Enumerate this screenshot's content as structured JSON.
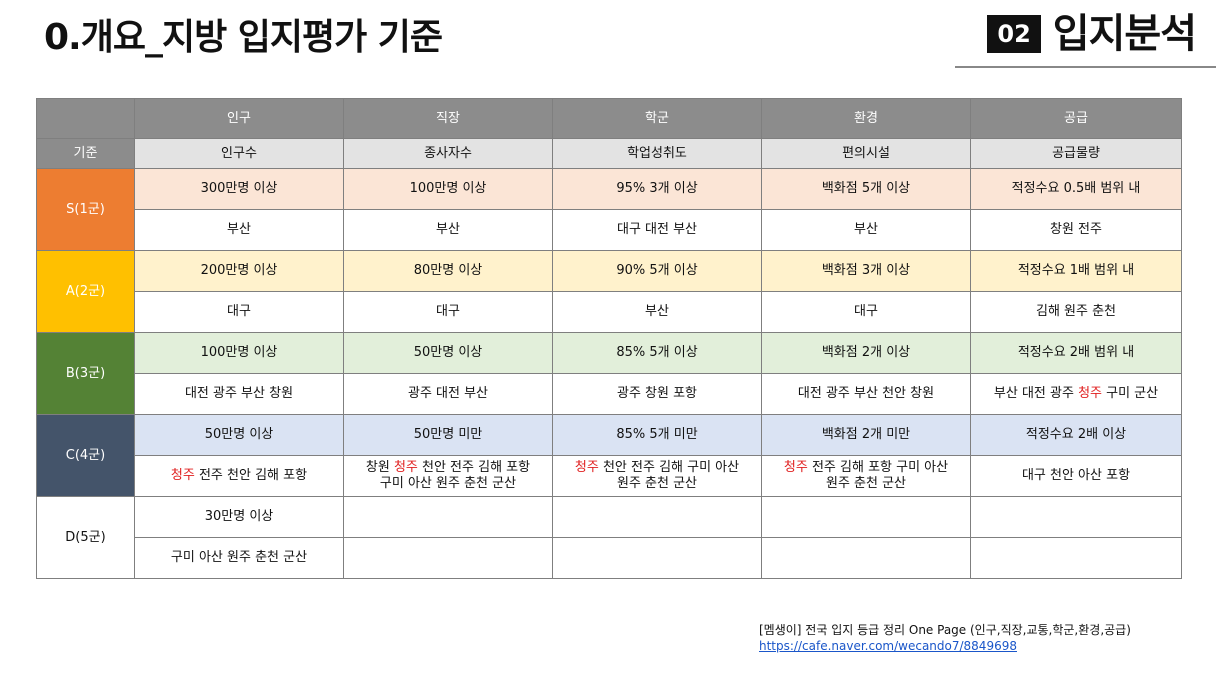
{
  "title": "0.개요_지방 입지평가 기준",
  "section": {
    "number": "02",
    "name": "입지분석"
  },
  "table": {
    "categories": [
      "인구",
      "직장",
      "학군",
      "환경",
      "공급"
    ],
    "criteria_label": "기준",
    "criteria": [
      "인구수",
      "종사자수",
      "학업성취도",
      "편의시설",
      "공급물량"
    ],
    "grades": [
      {
        "label": "S(1군)",
        "color": "#ed7d31",
        "thresholds": [
          "300만명 이상",
          "100만명 이상",
          "95% 3개 이상",
          "백화점 5개 이상",
          "적정수요 0.5배 범위 내"
        ],
        "places": [
          [
            {
              "t": "부산"
            }
          ],
          [
            {
              "t": "부산"
            }
          ],
          [
            {
              "t": "대구 대전 부산"
            }
          ],
          [
            {
              "t": "부산"
            }
          ],
          [
            {
              "t": "창원 전주"
            }
          ]
        ]
      },
      {
        "label": "A(2군)",
        "color": "#ffc000",
        "thresholds": [
          "200만명 이상",
          "80만명 이상",
          "90% 5개 이상",
          "백화점 3개 이상",
          "적정수요 1배 범위 내"
        ],
        "places": [
          [
            {
              "t": "대구"
            }
          ],
          [
            {
              "t": "대구"
            }
          ],
          [
            {
              "t": "부산"
            }
          ],
          [
            {
              "t": "대구"
            }
          ],
          [
            {
              "t": "김해 원주 춘천"
            }
          ]
        ]
      },
      {
        "label": "B(3군)",
        "color": "#548235",
        "thresholds": [
          "100만명 이상",
          "50만명 이상",
          "85% 5개 이상",
          "백화점 2개 이상",
          "적정수요 2배 범위 내"
        ],
        "places": [
          [
            {
              "t": "대전 광주 부산 창원"
            }
          ],
          [
            {
              "t": "광주 대전 부산"
            }
          ],
          [
            {
              "t": "광주 창원 포항"
            }
          ],
          [
            {
              "t": "대전 광주 부산 천안 창원"
            }
          ],
          [
            {
              "t": "부산 대전 광주 "
            },
            {
              "t": "청주",
              "red": true
            },
            {
              "t": " 구미 군산"
            }
          ]
        ]
      },
      {
        "label": "C(4군)",
        "color": "#44546a",
        "thresholds": [
          "50만명 이상",
          "50만명 미만",
          "85% 5개 미만",
          "백화점 2개 미만",
          "적정수요 2배 이상"
        ],
        "places": [
          [
            {
              "t": "청주",
              "red": true
            },
            {
              "t": " 전주 천안 김해 포항"
            }
          ],
          [
            {
              "t": "창원 "
            },
            {
              "t": "청주",
              "red": true
            },
            {
              "t": " 천안 전주 김해 포항\n구미 아산 원주 춘천 군산"
            }
          ],
          [
            {
              "t": "청주",
              "red": true
            },
            {
              "t": " 천안 전주 김해 구미 아산\n원주 춘천 군산"
            }
          ],
          [
            {
              "t": "청주",
              "red": true
            },
            {
              "t": " 전주 김해 포항 구미 아산\n원주 춘천 군산"
            }
          ],
          [
            {
              "t": "대구 천안 아산 포항"
            }
          ]
        ]
      },
      {
        "label": "D(5군)",
        "color": "#ffffff",
        "thresholds": [
          "30만명 이상",
          "",
          "",
          "",
          ""
        ],
        "places": [
          [
            {
              "t": "구미 아산 원주 춘천 군산"
            }
          ],
          [],
          [],
          [],
          []
        ]
      }
    ]
  },
  "footer": {
    "line1": "[멤생이] 전국 입지 등급 정리 One Page (인구,직장,교통,학군,환경,공급)",
    "link": "https://cafe.naver.com/wecando7/8849698"
  }
}
